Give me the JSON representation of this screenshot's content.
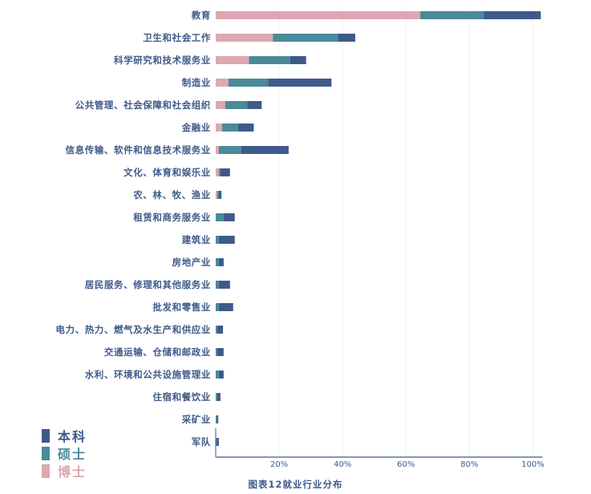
{
  "caption": "图表12就业行业分布",
  "colors": {
    "benke": "#3f5a8a",
    "shuoshi": "#4a8a99",
    "boshi": "#dea7b1",
    "axis": "#3f5a8a",
    "grid": "#eef0f4",
    "label": "#3f5a8a"
  },
  "legend": [
    {
      "name": "本科",
      "color": "#3f5a8a"
    },
    {
      "name": "硕士",
      "color": "#4a8a99"
    },
    {
      "name": "博士",
      "color": "#dea7b1"
    }
  ],
  "chart_data": {
    "type": "bar",
    "orientation": "horizontal",
    "stacked": true,
    "title": "图表12就业行业分布",
    "xlim": [
      0,
      103
    ],
    "xticks": [
      20,
      40,
      60,
      80,
      100
    ],
    "xtick_labels": [
      "20%",
      "40%",
      "60%",
      "80%",
      "100%"
    ],
    "grid": "vertical",
    "legend_position": "bottom-left",
    "categories": [
      "教育",
      "卫生和社会工作",
      "科学研究和技术服务业",
      "制造业",
      "公共管理、社会保障和社会组织",
      "金融业",
      "信息传输、软件和信息技术服务业",
      "文化、体育和娱乐业",
      "农、林、牧、渔业",
      "租赁和商务服务业",
      "建筑业",
      "房地产业",
      "居民服务、修理和其他服务业",
      "批发和零售业",
      "电力、热力、燃气及水生产和供应业",
      "交通运输、仓储和邮政业",
      "水利、环境和公共设施管理业",
      "住宿和餐饮业",
      "采矿业",
      "军队"
    ],
    "series": [
      {
        "name": "博士",
        "values": [
          64.5,
          18,
          10.5,
          4,
          3,
          2,
          1,
          1,
          0.5,
          0,
          0,
          0,
          0,
          0,
          0,
          0,
          0,
          0,
          0,
          0
        ]
      },
      {
        "name": "硕士",
        "values": [
          20,
          20.5,
          13,
          12.5,
          7,
          5,
          7,
          0.5,
          0.5,
          2.5,
          1,
          1,
          1,
          1,
          0.5,
          0.5,
          1,
          0.5,
          0.3,
          0.3
        ]
      },
      {
        "name": "本科",
        "values": [
          18,
          5.5,
          5,
          20,
          4.5,
          5,
          15,
          3,
          0.8,
          3.5,
          5,
          1.5,
          3.5,
          4.5,
          1.8,
          2,
          1.5,
          1,
          0.5,
          0.7
        ]
      }
    ]
  }
}
